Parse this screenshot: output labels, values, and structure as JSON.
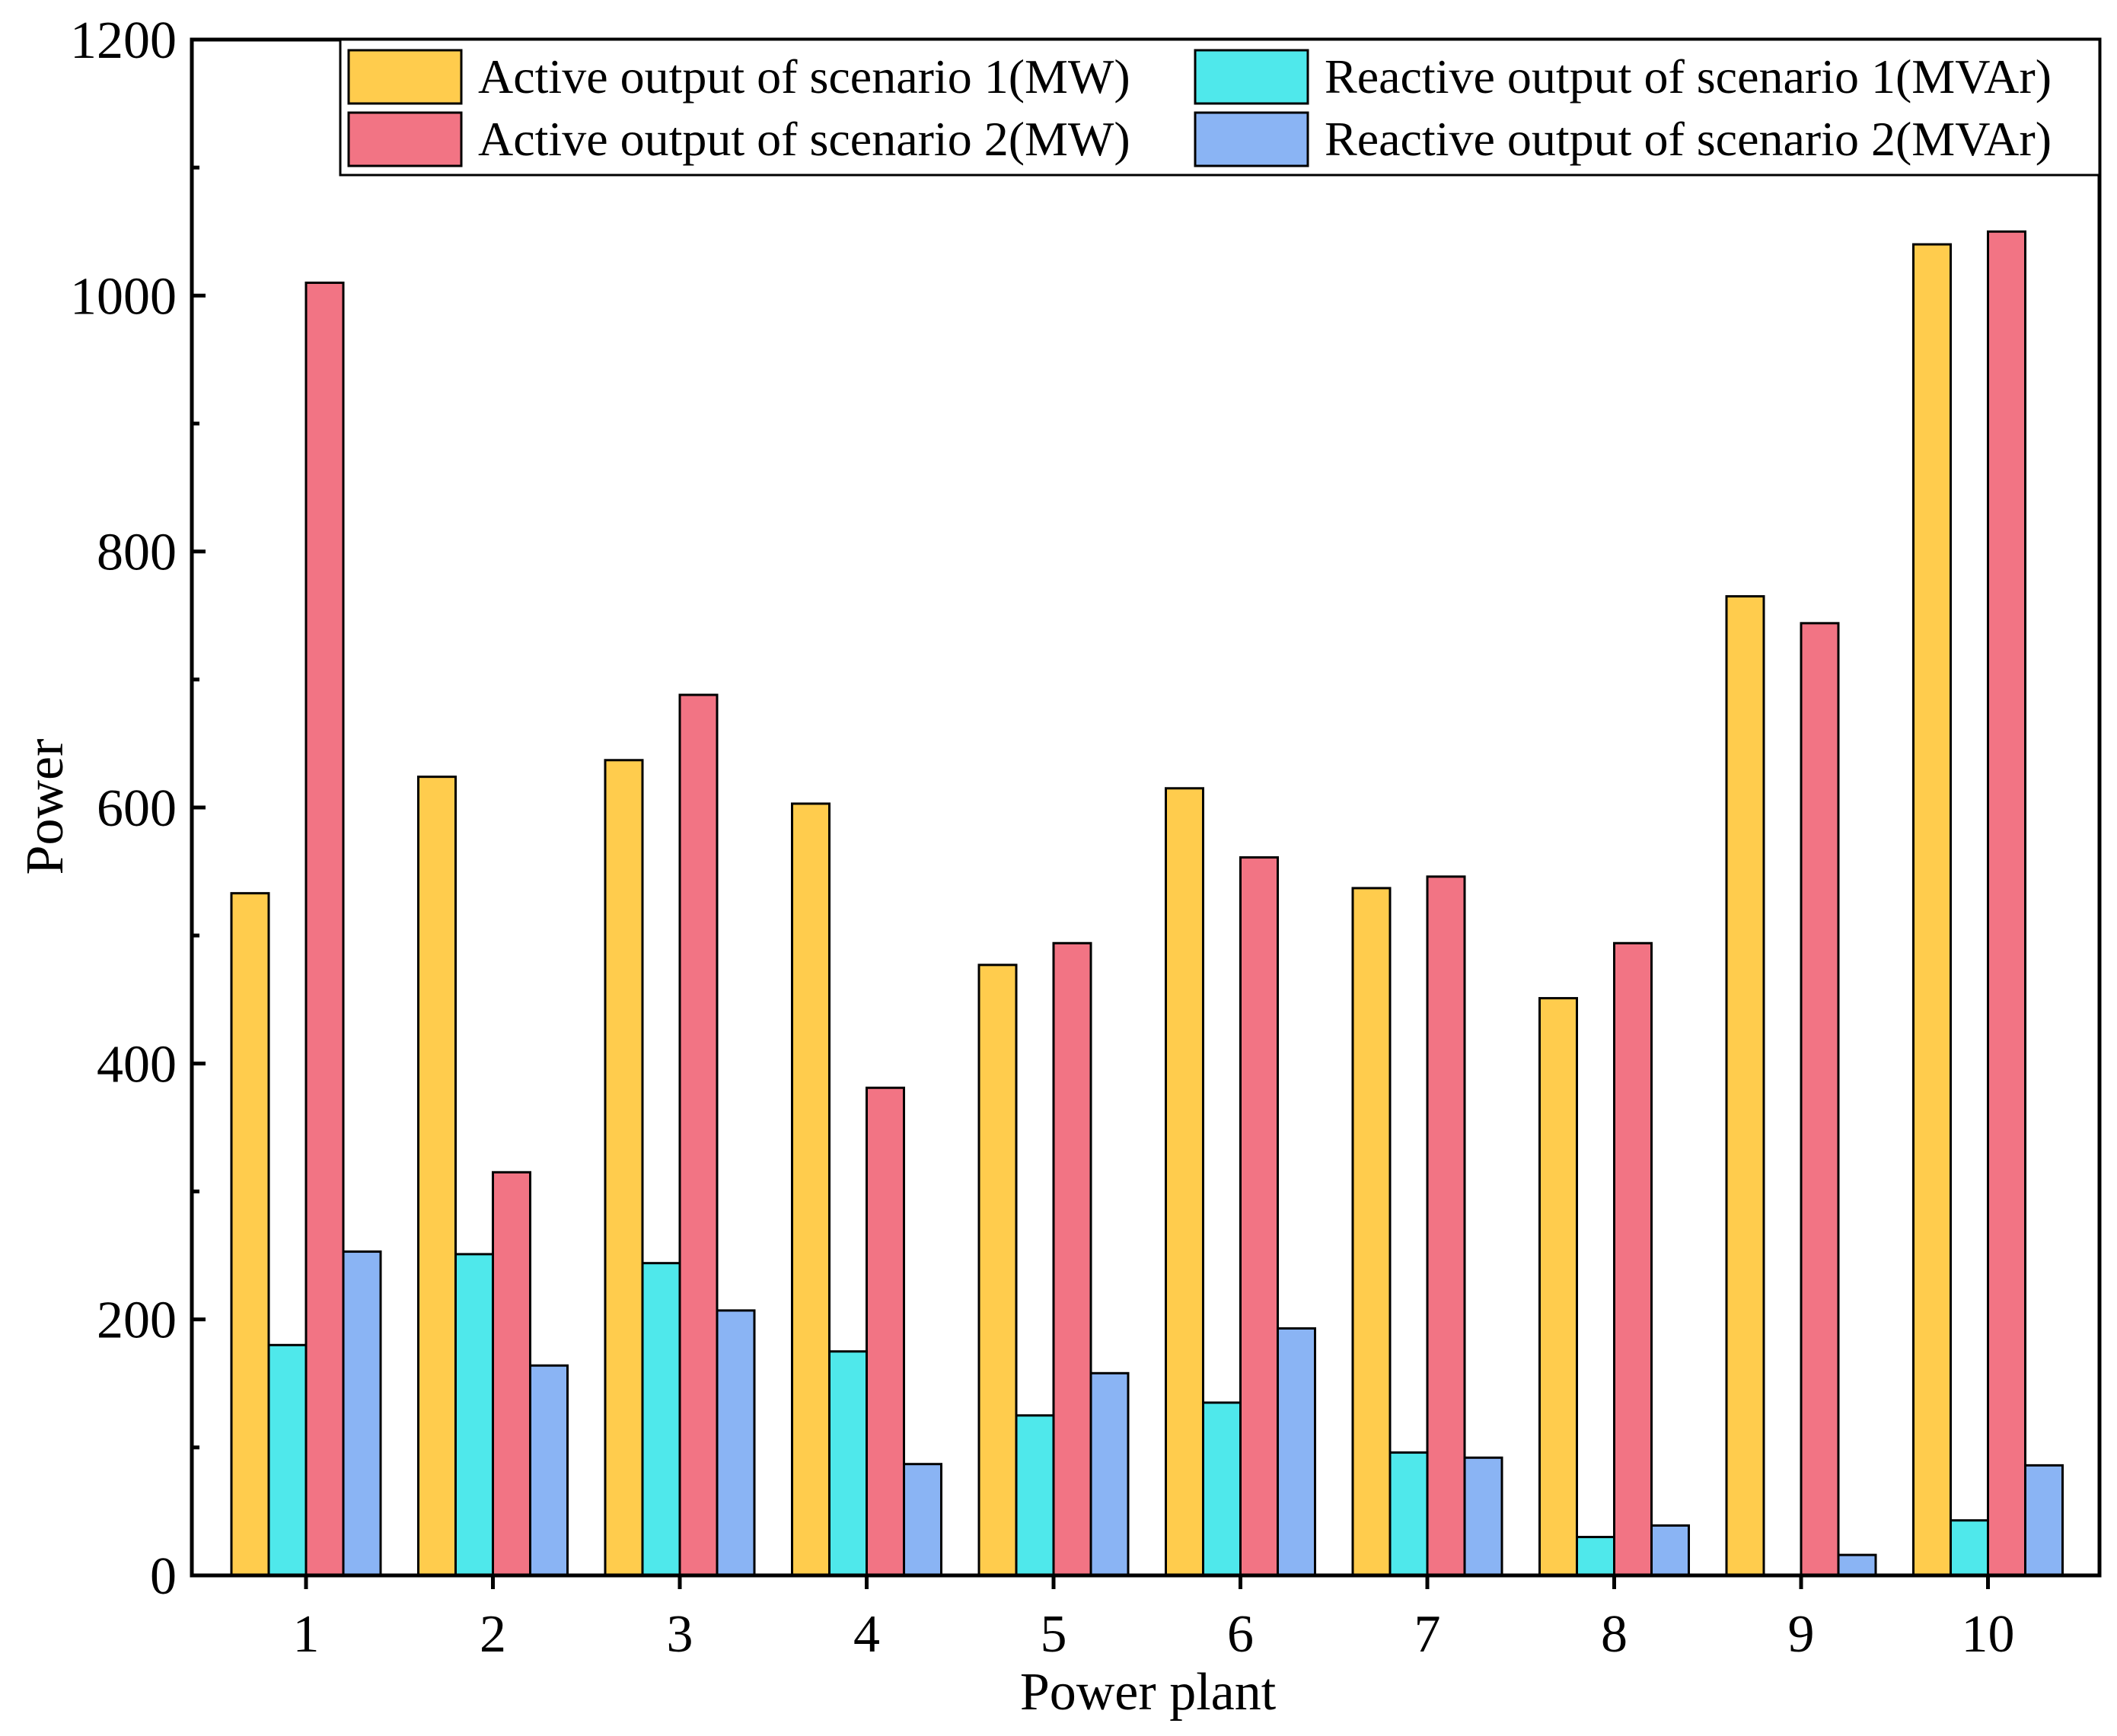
{
  "chart_data": {
    "type": "bar",
    "title": "",
    "xlabel": "Power plant",
    "ylabel": "Power",
    "categories": [
      "1",
      "2",
      "3",
      "4",
      "5",
      "6",
      "7",
      "8",
      "9",
      "10"
    ],
    "ylim": [
      0,
      1200
    ],
    "yticks": [
      0,
      200,
      400,
      600,
      800,
      1000,
      1200
    ],
    "grid": false,
    "legend_position": "top-right",
    "series": [
      {
        "name": "Active output of scenario 1(MW)",
        "color": "#FFCC4D",
        "values": [
          533,
          624,
          637,
          603,
          477,
          615,
          537,
          451,
          765,
          1040
        ]
      },
      {
        "name": "Reactive output of scenario 1(MVAr)",
        "color": "#4FE8EB",
        "values": [
          180,
          251,
          244,
          175,
          125,
          135,
          96,
          30,
          0,
          43
        ]
      },
      {
        "name": "Active output of scenario 2(MW)",
        "color": "#F27484",
        "values": [
          1010,
          315,
          688,
          381,
          494,
          561,
          546,
          494,
          744,
          1050
        ]
      },
      {
        "name": "Reactive output of scenario 2(MVAr)",
        "color": "#8AB4F4",
        "values": [
          253,
          164,
          207,
          87,
          158,
          193,
          92,
          39,
          16,
          86
        ]
      }
    ]
  }
}
